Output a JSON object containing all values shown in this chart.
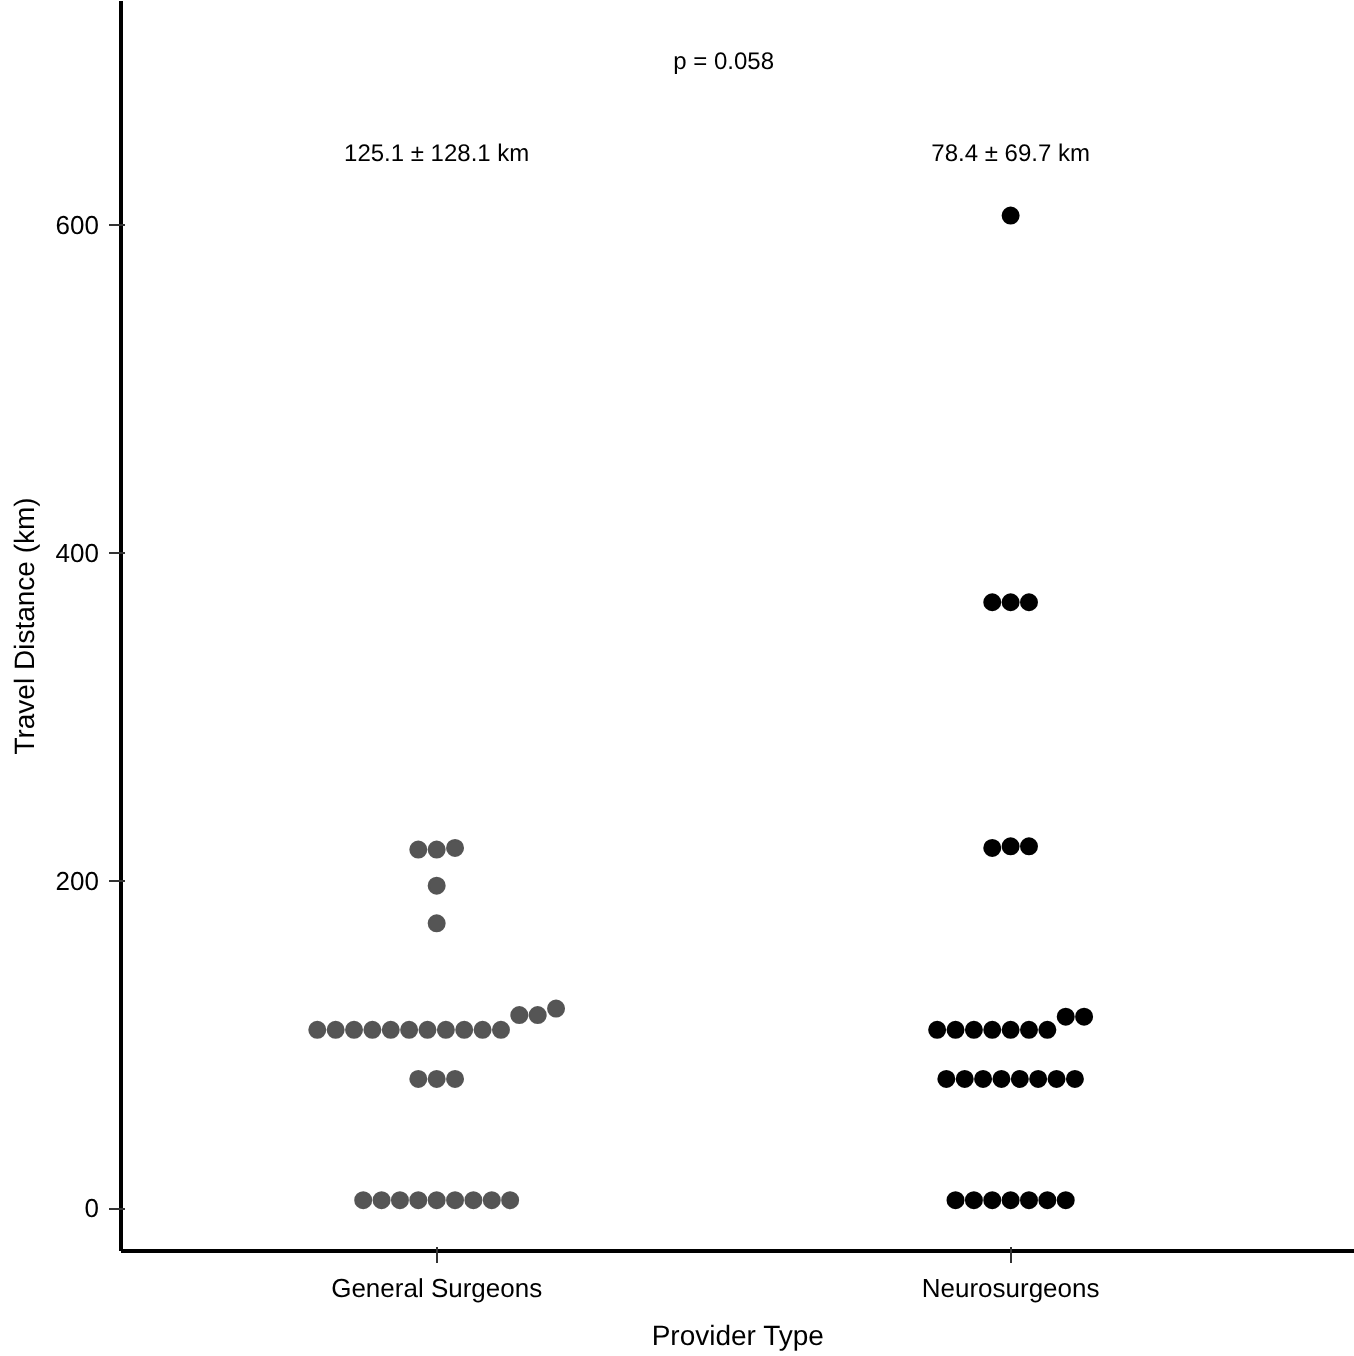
{
  "chart_data": {
    "type": "scatter",
    "xlabel": "Provider Type",
    "ylabel": "Travel Distance (km)",
    "categories": [
      "General Surgeons",
      "Neurosurgeons"
    ],
    "ylim": [
      -26,
      737
    ],
    "yticks": [
      0,
      200,
      400,
      600
    ],
    "grid": false,
    "marker": "circle",
    "annotations": [
      "p = 0.058",
      "125.1 ± 128.1 km",
      "78.4 ± 69.7 km"
    ],
    "series": [
      {
        "color": "#555555",
        "x": [
          "General Surgeons",
          "General Surgeons",
          "General Surgeons",
          "General Surgeons",
          "General Surgeons",
          "General Surgeons",
          "General Surgeons",
          "General Surgeons",
          "General Surgeons",
          "General Surgeons",
          "General Surgeons",
          "General Surgeons",
          "General Surgeons",
          "General Surgeons",
          "General Surgeons",
          "General Surgeons",
          "General Surgeons",
          "General Surgeons",
          "General Surgeons",
          "General Surgeons",
          "General Surgeons",
          "General Surgeons",
          "General Surgeons",
          "General Surgeons",
          "General Surgeons",
          "General Surgeons",
          "General Surgeons",
          "General Surgeons",
          "General Surgeons",
          "General Surgeons",
          "General Surgeons"
        ],
        "values": [
          219,
          219,
          220,
          197,
          174,
          109,
          109,
          109,
          109,
          109,
          109,
          109,
          109,
          109,
          109,
          109,
          118,
          118,
          122,
          79,
          79,
          79,
          5,
          5,
          5,
          5,
          5,
          5,
          5,
          5,
          5
        ]
      },
      {
        "color": "#000000",
        "x": [
          "Neurosurgeons",
          "Neurosurgeons",
          "Neurosurgeons",
          "Neurosurgeons",
          "Neurosurgeons",
          "Neurosurgeons",
          "Neurosurgeons",
          "Neurosurgeons",
          "Neurosurgeons",
          "Neurosurgeons",
          "Neurosurgeons",
          "Neurosurgeons",
          "Neurosurgeons",
          "Neurosurgeons",
          "Neurosurgeons",
          "Neurosurgeons",
          "Neurosurgeons",
          "Neurosurgeons",
          "Neurosurgeons",
          "Neurosurgeons",
          "Neurosurgeons",
          "Neurosurgeons",
          "Neurosurgeons",
          "Neurosurgeons",
          "Neurosurgeons",
          "Neurosurgeons",
          "Neurosurgeons",
          "Neurosurgeons",
          "Neurosurgeons",
          "Neurosurgeons",
          "Neurosurgeons"
        ],
        "values": [
          606,
          370,
          370,
          370,
          220,
          221,
          221,
          117,
          117,
          109,
          109,
          109,
          109,
          109,
          109,
          109,
          79,
          79,
          79,
          79,
          79,
          79,
          79,
          79,
          5,
          5,
          5,
          5,
          5,
          5,
          5
        ]
      }
    ]
  }
}
